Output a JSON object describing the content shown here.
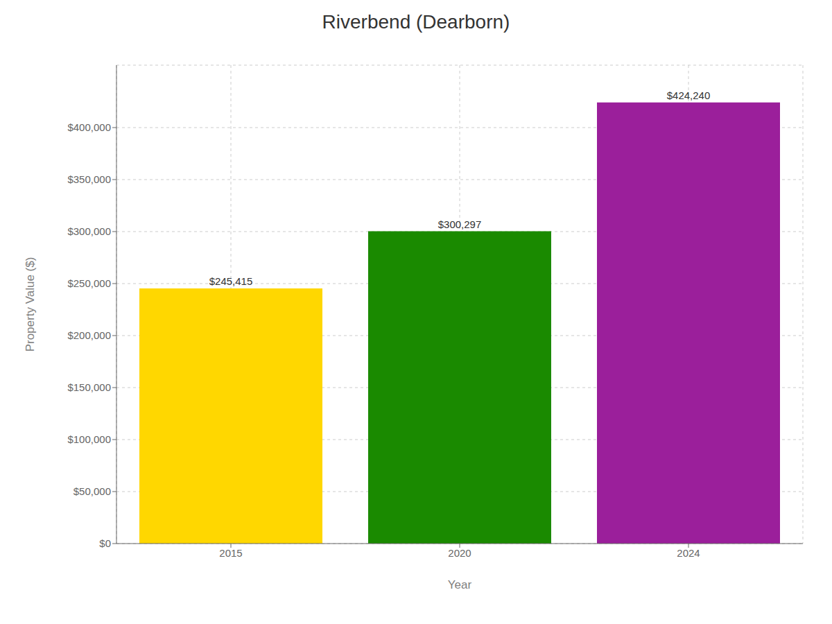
{
  "chart_data": {
    "type": "bar",
    "title": "Riverbend (Dearborn)",
    "xlabel": "Year",
    "ylabel": "Property Value ($)",
    "categories": [
      "2015",
      "2020",
      "2024"
    ],
    "values": [
      245415,
      300297,
      424240
    ],
    "value_labels": [
      "$245,415",
      "$300,297",
      "$424,240"
    ],
    "colors": [
      "#FFD700",
      "#1A8A00",
      "#9B1F9B"
    ],
    "ylim": [
      0,
      460000
    ],
    "yticks": [
      {
        "value": 0,
        "label": "$0"
      },
      {
        "value": 50000,
        "label": "$50,000"
      },
      {
        "value": 100000,
        "label": "$100,000"
      },
      {
        "value": 150000,
        "label": "$150,000"
      },
      {
        "value": 200000,
        "label": "$200,000"
      },
      {
        "value": 250000,
        "label": "$250,000"
      },
      {
        "value": 300000,
        "label": "$300,000"
      },
      {
        "value": 350000,
        "label": "$350,000"
      },
      {
        "value": 400000,
        "label": "$400,000"
      }
    ],
    "grid": true,
    "data_labels": true
  }
}
